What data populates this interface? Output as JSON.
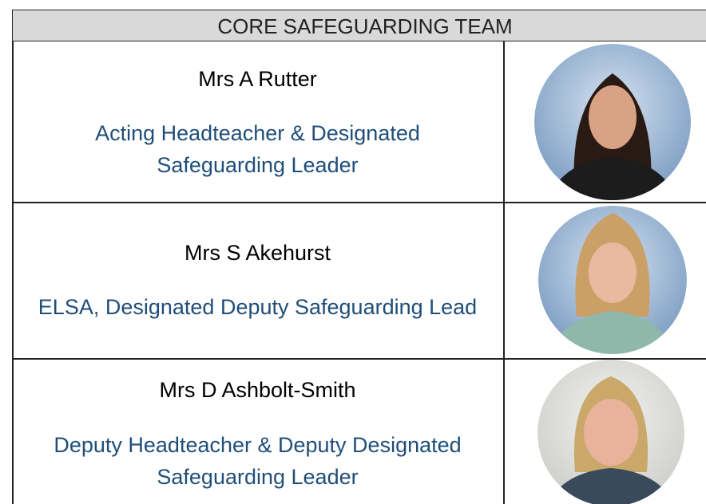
{
  "header": {
    "title": "CORE SAFEGUARDING TEAM"
  },
  "rows": [
    {
      "name": "Mrs A Rutter",
      "role": [
        "Acting Headteacher & Designated",
        "Safeguarding Leader"
      ]
    },
    {
      "name": "Mrs S Akehurst",
      "role": [
        "ELSA, Designated Deputy Safeguarding Lead"
      ]
    },
    {
      "name": "Mrs D Ashbolt-Smith",
      "role": [
        "Deputy Headteacher & Deputy Designated",
        "Safeguarding Leader"
      ]
    }
  ]
}
